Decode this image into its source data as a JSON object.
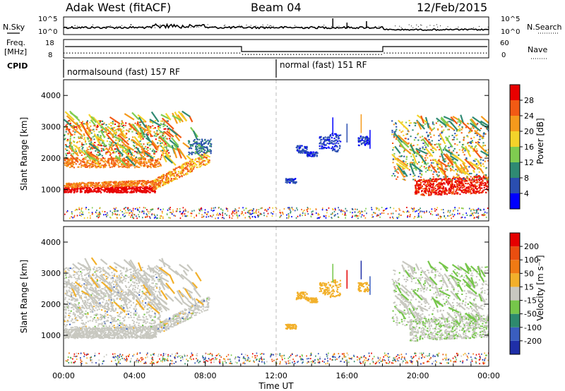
{
  "header": {
    "radar": "Adak West (fitACF)",
    "beam": "Beam 04",
    "date": "12/Feb/2015"
  },
  "side_labels": {
    "nsky": "N.Sky",
    "freq_line1": "Freq.",
    "freq_line2": "[MHz]",
    "cpid": "CPID",
    "nsearch": "N.Search",
    "nave": "Nave"
  },
  "noise_panel": {
    "left_ticks": [
      "10^5",
      "10^0"
    ],
    "right_ticks": [
      "10^5",
      "10^0"
    ]
  },
  "freq_panel": {
    "left_ticks": [
      "18",
      "8"
    ],
    "right_ticks": [
      "60",
      "0"
    ]
  },
  "cpid_panel": {
    "labels": [
      "normalsound (fast) 157 RF",
      "normal (fast) 151 RF"
    ]
  },
  "chart_data": [
    {
      "type": "heatmap",
      "name": "power",
      "xlabel": "",
      "ylabel": "Slant Range [km]",
      "y_ticks": [
        "1000",
        "2000",
        "3000",
        "4000"
      ],
      "ylim": [
        0,
        4500
      ],
      "colorbar": {
        "label": "Power [dB]",
        "ticks": [
          "4",
          "8",
          "12",
          "16",
          "20",
          "24",
          "28"
        ],
        "colors": [
          "#0000ff",
          "#2a4eb0",
          "#2f8a73",
          "#7fcc50",
          "#f4d32a",
          "#f59a1c",
          "#f25a14",
          "#e80000"
        ]
      }
    },
    {
      "type": "heatmap",
      "name": "velocity",
      "xlabel": "Time UT",
      "ylabel": "Slant Range [km]",
      "y_ticks": [
        "1000",
        "2000",
        "3000",
        "4000"
      ],
      "ylim": [
        0,
        4500
      ],
      "x_ticks": [
        "00:00",
        "04:00",
        "08:00",
        "12:00",
        "16:00",
        "20:00",
        "00:00"
      ],
      "colorbar": {
        "label": "Velocity [m s⁻¹]",
        "ticks": [
          "200",
          "100",
          "50",
          "15",
          "-15",
          "-50",
          "-100",
          "-200"
        ],
        "colors": [
          "#1f2fa8",
          "#3a5ebf",
          "#2e8a6e",
          "#76c64a",
          "#c8c8c0",
          "#f2b02a",
          "#f07a14",
          "#ea4e10",
          "#e50000"
        ]
      }
    }
  ]
}
